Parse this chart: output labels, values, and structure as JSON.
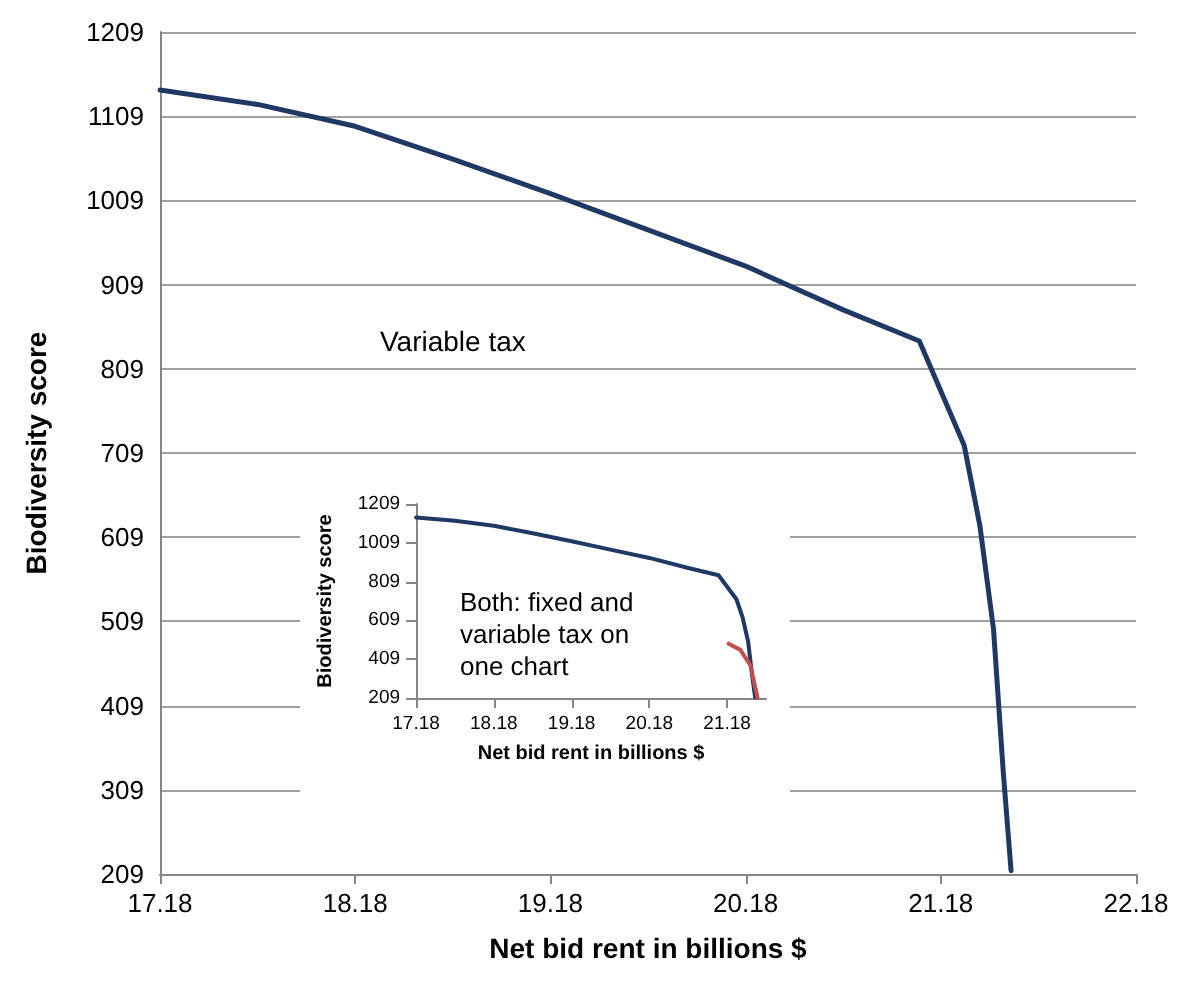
{
  "chart_data": [
    {
      "type": "line",
      "xlabel": "Net bid rent in billions $",
      "ylabel": "Biodiversity score",
      "xlim": [
        17.18,
        22.18
      ],
      "xticks": [
        17.18,
        18.18,
        19.18,
        20.18,
        21.18,
        22.18
      ],
      "ylim": [
        209,
        1209
      ],
      "yticks": [
        209,
        309,
        409,
        509,
        609,
        709,
        809,
        909,
        1009,
        1109,
        1209
      ],
      "grid": "y",
      "annotations": [
        "Variable tax"
      ],
      "series": [
        {
          "color": "#1f3864",
          "x": [
            17.18,
            17.68,
            18.18,
            18.68,
            19.18,
            19.68,
            20.18,
            20.68,
            21.07,
            21.3,
            21.38,
            21.45,
            21.5,
            21.54
          ],
          "values": [
            1140,
            1123,
            1097,
            1058,
            1017,
            974,
            931,
            879,
            842,
            718,
            623,
            500,
            330,
            213
          ]
        }
      ]
    },
    {
      "type": "line",
      "xlabel": "Net bid rent in billions $",
      "ylabel": "Biodiversity score",
      "xlim": [
        17.18,
        21.68
      ],
      "xticks": [
        17.18,
        18.18,
        19.18,
        20.18,
        21.18
      ],
      "ylim": [
        209,
        1209
      ],
      "yticks": [
        209,
        409,
        609,
        809,
        1009,
        1209
      ],
      "annotations": [
        "Both: fixed and\nvariable tax on\none chart"
      ],
      "series": [
        {
          "color": "#1f3864",
          "x": [
            17.18,
            17.68,
            18.18,
            18.68,
            19.18,
            19.68,
            20.18,
            20.68,
            21.07,
            21.3,
            21.38,
            21.45,
            21.5,
            21.54
          ],
          "values": [
            1140,
            1123,
            1097,
            1058,
            1017,
            974,
            931,
            879,
            842,
            718,
            623,
            500,
            330,
            213
          ]
        },
        {
          "color": "#c0504d",
          "x": [
            21.2,
            21.35,
            21.48,
            21.56,
            21.57
          ],
          "values": [
            489,
            457,
            377,
            233,
            209
          ]
        }
      ]
    }
  ]
}
